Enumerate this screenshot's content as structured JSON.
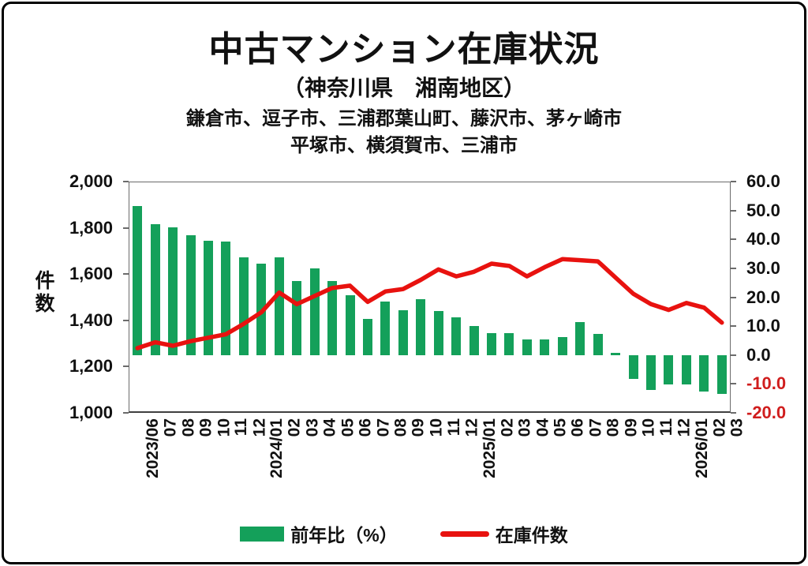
{
  "title": "中古マンション在庫状況",
  "subtitle": "（神奈川県　湘南地区）",
  "region_line1": "鎌倉市、逗子市、三浦郡葉山町、藤沢市、茅ヶ崎市",
  "region_line2": "平塚市、横須賀市、三浦市",
  "left_axis": {
    "label": "件数",
    "ticks": [
      "2,000",
      "1,800",
      "1,600",
      "1,400",
      "1,200",
      "1,000"
    ],
    "tick_values": [
      2000,
      1800,
      1600,
      1400,
      1200,
      1000
    ]
  },
  "right_axis": {
    "ticks": [
      "60.0",
      "50.0",
      "40.0",
      "30.0",
      "20.0",
      "10.0",
      "0.0",
      "-10.0",
      "-20.0"
    ],
    "tick_values": [
      60,
      50,
      40,
      30,
      20,
      10,
      0,
      -10,
      -20
    ],
    "negative_color": "#D01D1D",
    "positive_color": "#111111"
  },
  "legend": [
    {
      "label": "前年比（%）",
      "type": "bar",
      "color": "#14A05A"
    },
    {
      "label": "在庫件数",
      "type": "line",
      "color": "#E8120F"
    }
  ],
  "chart_data": {
    "type": "bar+line",
    "title": "中古マンション在庫状況（神奈川県 湘南地区）",
    "categories": [
      "2023/06",
      "07",
      "08",
      "09",
      "10",
      "11",
      "12",
      "2024/01",
      "02",
      "03",
      "04",
      "05",
      "06",
      "07",
      "08",
      "09",
      "10",
      "11",
      "12",
      "2025/01",
      "02",
      "03",
      "04",
      "05",
      "06",
      "07",
      "08",
      "09",
      "10",
      "11",
      "12",
      "2026/01",
      "02",
      "03"
    ],
    "series": [
      {
        "name": "前年比（%）",
        "type": "bar",
        "axis": "right",
        "color": "#14A05A",
        "values": [
          51.5,
          45.2,
          44.2,
          41.5,
          39.6,
          39.2,
          33.7,
          31.7,
          33.9,
          25.7,
          30.1,
          25.7,
          20.8,
          12.5,
          18.6,
          15.6,
          19.4,
          15.2,
          13.1,
          10.1,
          7.7,
          7.7,
          5.4,
          5.4,
          6.1,
          11.5,
          7.2,
          0.8,
          -8.3,
          -12.1,
          -10.1,
          -10.1,
          -12.6,
          -13.5
        ]
      },
      {
        "name": "在庫件数",
        "type": "line",
        "axis": "left",
        "color": "#E8120F",
        "values": [
          1280,
          1305,
          1290,
          1310,
          1325,
          1340,
          1385,
          1435,
          1520,
          1470,
          1505,
          1540,
          1550,
          1480,
          1525,
          1535,
          1575,
          1620,
          1590,
          1610,
          1645,
          1635,
          1590,
          1630,
          1665,
          1660,
          1655,
          1585,
          1515,
          1470,
          1445,
          1475,
          1455,
          1390
        ]
      }
    ],
    "left_ylim": [
      1000,
      2000
    ],
    "right_ylim": [
      -20,
      60
    ],
    "grid": true,
    "legend_position": "bottom"
  }
}
